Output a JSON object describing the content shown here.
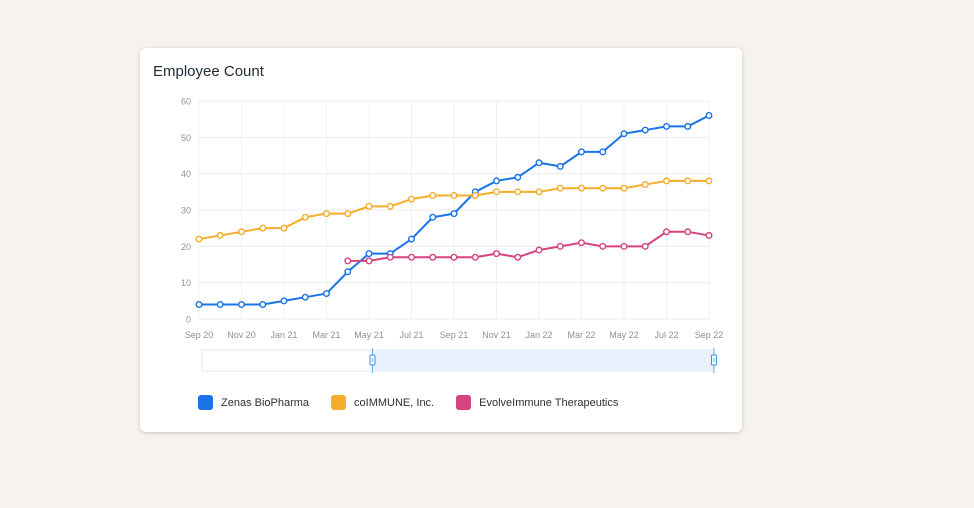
{
  "card": {
    "title": "Employee Count"
  },
  "chart_data": {
    "type": "line",
    "title": "Employee Count",
    "xlabel": "",
    "ylabel": "",
    "ylim": [
      0,
      60
    ],
    "yticks": [
      0,
      10,
      20,
      30,
      40,
      50,
      60
    ],
    "grid": true,
    "legend_position": "bottom",
    "x": [
      "Sep 20",
      "Oct 20",
      "Nov 20",
      "Dec 20",
      "Jan 21",
      "Feb 21",
      "Mar 21",
      "Apr 21",
      "May 21",
      "Jun 21",
      "Jul 21",
      "Aug 21",
      "Sep 21",
      "Oct 21",
      "Nov 21",
      "Dec 21",
      "Jan 22",
      "Feb 22",
      "Mar 22",
      "Apr 22",
      "May 22",
      "Jun 22",
      "Jul 22",
      "Aug 22",
      "Sep 22"
    ],
    "xtick_labels": [
      "Sep 20",
      "Nov 20",
      "Jan 21",
      "Mar 21",
      "May 21",
      "Jul 21",
      "Sep 21",
      "Nov 21",
      "Jan 22",
      "Mar 22",
      "May 22",
      "Jul 22",
      "Sep 22"
    ],
    "series": [
      {
        "name": "Zenas BioPharma",
        "color": "#1a73e8",
        "values": [
          4,
          4,
          4,
          4,
          5,
          6,
          7,
          13,
          18,
          18,
          22,
          28,
          29,
          35,
          38,
          39,
          43,
          42,
          46,
          46,
          51,
          52,
          53,
          53,
          56
        ]
      },
      {
        "name": "coIMMUNE, Inc.",
        "color": "#f6ad2b",
        "values": [
          22,
          23,
          24,
          25,
          25,
          28,
          29,
          29,
          31,
          31,
          33,
          34,
          34,
          34,
          35,
          35,
          35,
          36,
          36,
          36,
          36,
          37,
          38,
          38,
          38
        ]
      },
      {
        "name": "EvolveImmune Therapeutics",
        "color": "#d6437f",
        "values": [
          null,
          null,
          null,
          null,
          null,
          null,
          null,
          16,
          16,
          17,
          17,
          17,
          17,
          17,
          18,
          17,
          19,
          20,
          21,
          20,
          20,
          20,
          24,
          24,
          23
        ]
      }
    ],
    "range_selector": {
      "start_fraction": 0.333,
      "end_fraction": 1.0
    }
  }
}
